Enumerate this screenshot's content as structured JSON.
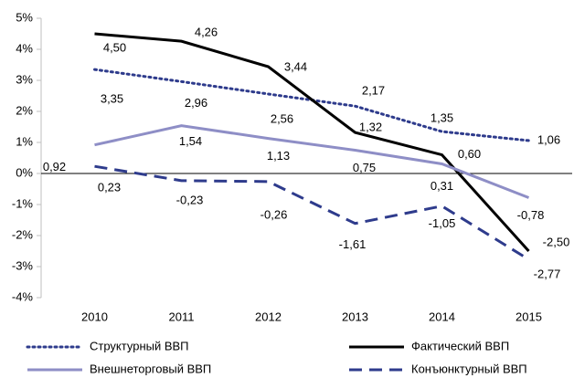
{
  "chart_data": {
    "type": "line",
    "categories": [
      "2010",
      "2011",
      "2012",
      "2013",
      "2014",
      "2015"
    ],
    "ylim": [
      -4,
      5
    ],
    "yticks": [
      {
        "value": -4,
        "label": "-4%"
      },
      {
        "value": -3,
        "label": "-3%"
      },
      {
        "value": -2,
        "label": "-2%"
      },
      {
        "value": -1,
        "label": "-1%"
      },
      {
        "value": 0,
        "label": "0%"
      },
      {
        "value": 1,
        "label": "1%"
      },
      {
        "value": 2,
        "label": "2%"
      },
      {
        "value": 3,
        "label": "3%"
      },
      {
        "value": 4,
        "label": "4%"
      },
      {
        "value": 5,
        "label": "5%"
      }
    ],
    "series": [
      {
        "name": "Структурный ВВП",
        "color": "#2e3b8c",
        "dash": "dotted",
        "values": [
          3.35,
          2.96,
          2.56,
          2.17,
          1.35,
          1.06
        ],
        "value_labels": [
          "3,35",
          "2,96",
          "2,56",
          "2,17",
          "1,35",
          "1,06"
        ]
      },
      {
        "name": "Фактический ВВП",
        "color": "#000000",
        "dash": "solid",
        "values": [
          4.5,
          4.26,
          3.44,
          1.32,
          0.6,
          -2.5
        ],
        "value_labels": [
          "4,50",
          "4,26",
          "3,44",
          "1,32",
          "0,60",
          "-2,50"
        ]
      },
      {
        "name": "Внешнеторговый ВВП",
        "color": "#8e8ec6",
        "dash": "solid",
        "values": [
          0.92,
          1.54,
          1.13,
          0.75,
          0.31,
          -0.78
        ],
        "value_labels": [
          "0,92",
          "1,54",
          "1,13",
          "0,75",
          "0,31",
          "-0,78"
        ]
      },
      {
        "name": "Конъюнктурный ВВП",
        "color": "#2e3b8c",
        "dash": "dashed",
        "values": [
          0.23,
          -0.23,
          -0.26,
          -1.61,
          -1.05,
          -2.77
        ],
        "value_labels": [
          "0,23",
          "-0,23",
          "-0,26",
          "-1,61",
          "-1,05",
          "-2,77"
        ]
      }
    ]
  }
}
